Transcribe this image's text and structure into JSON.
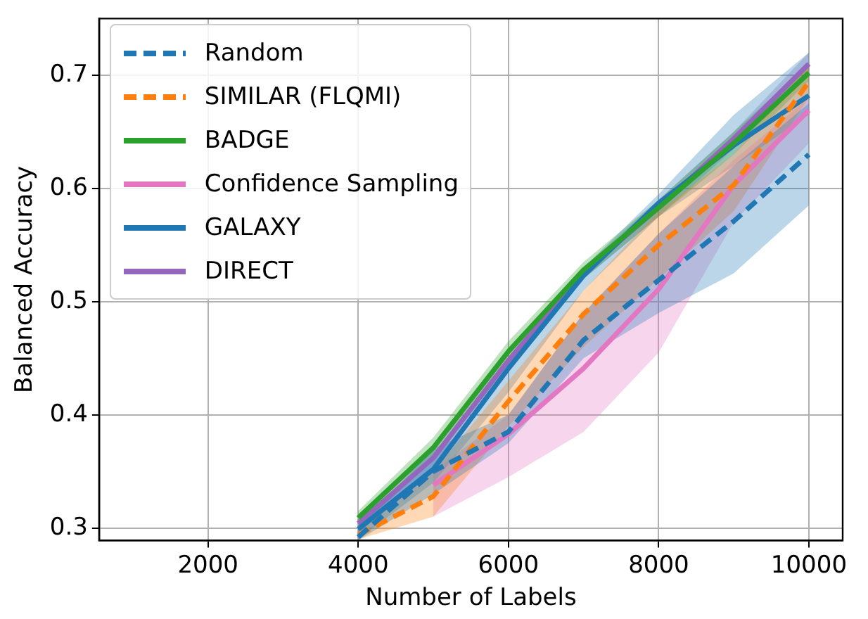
{
  "chart_data": {
    "type": "line",
    "xlabel": "Number of Labels",
    "ylabel": "Balanced Accuracy",
    "x": [
      4000,
      5000,
      6000,
      7000,
      8000,
      9000,
      10000
    ],
    "xlim": [
      550,
      10450
    ],
    "xticks": [
      2000,
      4000,
      6000,
      8000,
      10000
    ],
    "ylim": [
      0.289,
      0.75
    ],
    "yticks": [
      0.3,
      0.4,
      0.5,
      0.6,
      0.7
    ],
    "grid": true,
    "legend": "top left",
    "marker": "none",
    "series": [
      {
        "name": "Random",
        "color": "#1f77b4",
        "line_style": "dashed",
        "values": [
          0.292,
          0.35,
          0.385,
          0.466,
          0.519,
          0.571,
          0.63
        ],
        "lower": [
          0.289,
          0.33,
          0.375,
          0.45,
          0.49,
          0.525,
          0.585
        ],
        "upper": [
          0.3,
          0.37,
          0.4,
          0.49,
          0.56,
          0.62,
          0.675
        ]
      },
      {
        "name": "SIMILAR (FLQMI)",
        "color": "#ff7f0e",
        "line_style": "dashed",
        "values": [
          0.294,
          0.328,
          0.412,
          0.489,
          0.55,
          0.603,
          0.694
        ],
        "lower": [
          0.29,
          0.31,
          0.39,
          0.46,
          0.52,
          0.58,
          0.68
        ],
        "upper": [
          0.3,
          0.35,
          0.43,
          0.51,
          0.58,
          0.63,
          0.71
        ]
      },
      {
        "name": "BADGE",
        "color": "#2ca02c",
        "line_style": "solid",
        "values": [
          0.309,
          0.371,
          0.456,
          0.528,
          0.583,
          0.64,
          0.702
        ],
        "lower": [
          0.3,
          0.36,
          0.445,
          0.52,
          0.575,
          0.63,
          0.695
        ],
        "upper": [
          0.315,
          0.38,
          0.465,
          0.535,
          0.59,
          0.65,
          0.71
        ]
      },
      {
        "name": "Confidence Sampling",
        "color": "#e377c2",
        "line_style": "solid",
        "values": [
          null,
          0.338,
          0.383,
          0.441,
          0.511,
          0.603,
          0.669
        ],
        "lower": [
          null,
          0.31,
          0.345,
          0.385,
          0.455,
          0.57,
          0.64
        ],
        "upper": [
          null,
          0.35,
          0.4,
          0.49,
          0.56,
          0.625,
          0.68
        ]
      },
      {
        "name": "GALAXY",
        "color": "#1f77b4",
        "line_style": "solid",
        "values": [
          0.299,
          0.352,
          0.441,
          0.523,
          0.587,
          0.638,
          0.682
        ],
        "lower": [
          0.29,
          0.34,
          0.42,
          0.51,
          0.575,
          0.62,
          0.665
        ],
        "upper": [
          0.305,
          0.36,
          0.45,
          0.53,
          0.595,
          0.665,
          0.72
        ]
      },
      {
        "name": "DIRECT",
        "color": "#9467bd",
        "line_style": "solid",
        "values": [
          0.304,
          0.362,
          0.448,
          0.526,
          0.583,
          0.644,
          0.71
        ],
        "lower": [
          0.295,
          0.355,
          0.44,
          0.52,
          0.575,
          0.635,
          0.7
        ],
        "upper": [
          0.31,
          0.37,
          0.455,
          0.53,
          0.59,
          0.65,
          0.72
        ]
      }
    ]
  }
}
